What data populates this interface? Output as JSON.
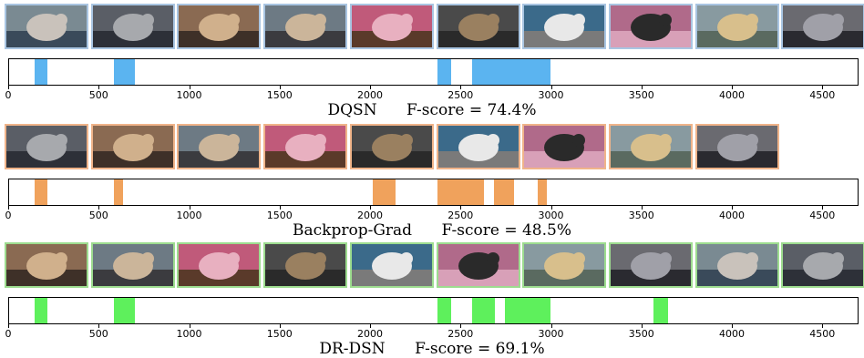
{
  "chart_data": [
    {
      "type": "timeline",
      "method": "DQSN",
      "fscore_text": "F-score = 74.4%",
      "color": "#5bb4f0",
      "frame_border": "#a9c5e2",
      "xlim": [
        0,
        4700
      ],
      "ticks": [
        0,
        500,
        1000,
        1500,
        2000,
        2500,
        3000,
        3500,
        4000,
        4500
      ],
      "tick_labels": [
        "0",
        "500",
        "1000",
        "1500",
        "2000",
        "2500",
        "3000",
        "3500",
        "4000",
        "4500"
      ],
      "segments": [
        [
          140,
          210
        ],
        [
          580,
          695
        ],
        [
          2370,
          2445
        ],
        [
          2560,
          2990
        ]
      ],
      "thumbnail_count": 10
    },
    {
      "type": "timeline",
      "method": "Backprop-Grad",
      "fscore_text": "F-score = 48.5%",
      "color": "#f0a25c",
      "frame_border": "#f0b48a",
      "xlim": [
        0,
        4700
      ],
      "ticks": [
        0,
        500,
        1000,
        1500,
        2000,
        2500,
        3000,
        3500,
        4000,
        4500
      ],
      "tick_labels": [
        "0",
        "500",
        "1000",
        "1500",
        "2000",
        "2500",
        "3000",
        "3500",
        "4000",
        "4500"
      ],
      "segments": [
        [
          140,
          210
        ],
        [
          580,
          630
        ],
        [
          2010,
          2135
        ],
        [
          2370,
          2625
        ],
        [
          2680,
          2790
        ],
        [
          2920,
          2970
        ]
      ],
      "thumbnail_count": 9
    },
    {
      "type": "timeline",
      "method": "DR-DSN",
      "fscore_text": "F-score = 69.1%",
      "color": "#5ef05c",
      "frame_border": "#9ddc8f",
      "xlim": [
        0,
        4700
      ],
      "ticks": [
        0,
        500,
        1000,
        1500,
        2000,
        2500,
        3000,
        3500,
        4000,
        4500
      ],
      "tick_labels": [
        "0",
        "500",
        "1000",
        "1500",
        "2000",
        "2500",
        "3000",
        "3500",
        "4000",
        "4500"
      ],
      "segments": [
        [
          140,
          210
        ],
        [
          580,
          695
        ],
        [
          2370,
          2445
        ],
        [
          2560,
          2685
        ],
        [
          2740,
          2990
        ],
        [
          3560,
          3640
        ]
      ],
      "thumbnail_count": 10
    }
  ]
}
